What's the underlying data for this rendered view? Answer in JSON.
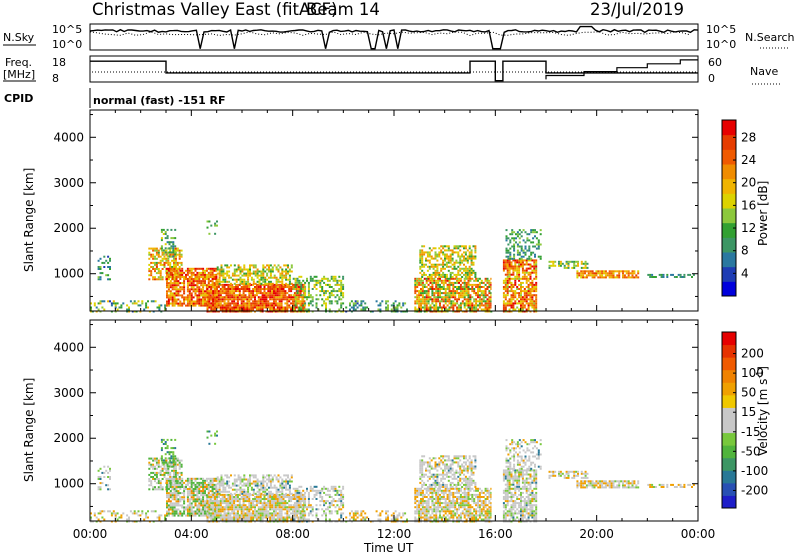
{
  "header": {
    "title": "Christmas Valley East (fitACF)",
    "beam": "Beam 14",
    "date": "23/Jul/2019"
  },
  "strips": {
    "nsky": {
      "left_label": "N.Sky",
      "left_ticks": [
        "10^5",
        "10^0"
      ],
      "right_ticks": [
        "10^5",
        "10^0"
      ],
      "right_label": "N.Search"
    },
    "freq": {
      "left_label_1": "Freq.",
      "left_label_2": "[MHz]",
      "left_ticks": [
        "18",
        "8"
      ],
      "right_ticks": [
        "60",
        "0"
      ],
      "right_label": "Nave"
    },
    "cpid": {
      "label": "CPID",
      "text": "normal (fast) -151 RF"
    }
  },
  "chart_data": [
    {
      "type": "heatmap",
      "panel": "power",
      "ylabel": "Slant Range [km]",
      "yticks": [
        "1000",
        "2000",
        "3000",
        "4000"
      ],
      "xlabel": "Time UT",
      "xticks": [
        "00:00",
        "04:00",
        "08:00",
        "12:00",
        "16:00",
        "20:00",
        "00:00"
      ],
      "colorbar": {
        "label": "Power [dB]",
        "ticks": [
          "4",
          "8",
          "12",
          "16",
          "20",
          "24",
          "28"
        ],
        "colors": [
          "#0000dc",
          "#1e3cb4",
          "#2a78a0",
          "#3c9664",
          "#32a032",
          "#8cc83c",
          "#dcd200",
          "#f0b400",
          "#f08c00",
          "#f05a00",
          "#e63c00",
          "#e60000"
        ]
      },
      "x_range_hours": [
        0,
        24
      ],
      "y_range_km": [
        180,
        4600
      ]
    },
    {
      "type": "heatmap",
      "panel": "velocity",
      "ylabel": "Slant Range [km]",
      "yticks": [
        "1000",
        "2000",
        "3000",
        "4000"
      ],
      "xlabel": "Time UT",
      "xticks": [
        "00:00",
        "04:00",
        "08:00",
        "12:00",
        "16:00",
        "20:00",
        "00:00"
      ],
      "colorbar": {
        "label": "Velocity [m s",
        "label_sup": "-1",
        "label_end": "]",
        "ticks": [
          "200",
          "100",
          "50",
          "15",
          "-15",
          "-50",
          "-100",
          "-200"
        ],
        "colors": [
          "#1e1ec8",
          "#2850b4",
          "#287896",
          "#3c9664",
          "#50b43c",
          "#78c83c",
          "#c8c8c8",
          "#c8c8c8",
          "#f0c800",
          "#f0a000",
          "#f08200",
          "#f05a00",
          "#e63200",
          "#e60000"
        ]
      },
      "x_range_hours": [
        0,
        24
      ],
      "y_range_km": [
        180,
        4600
      ]
    }
  ]
}
